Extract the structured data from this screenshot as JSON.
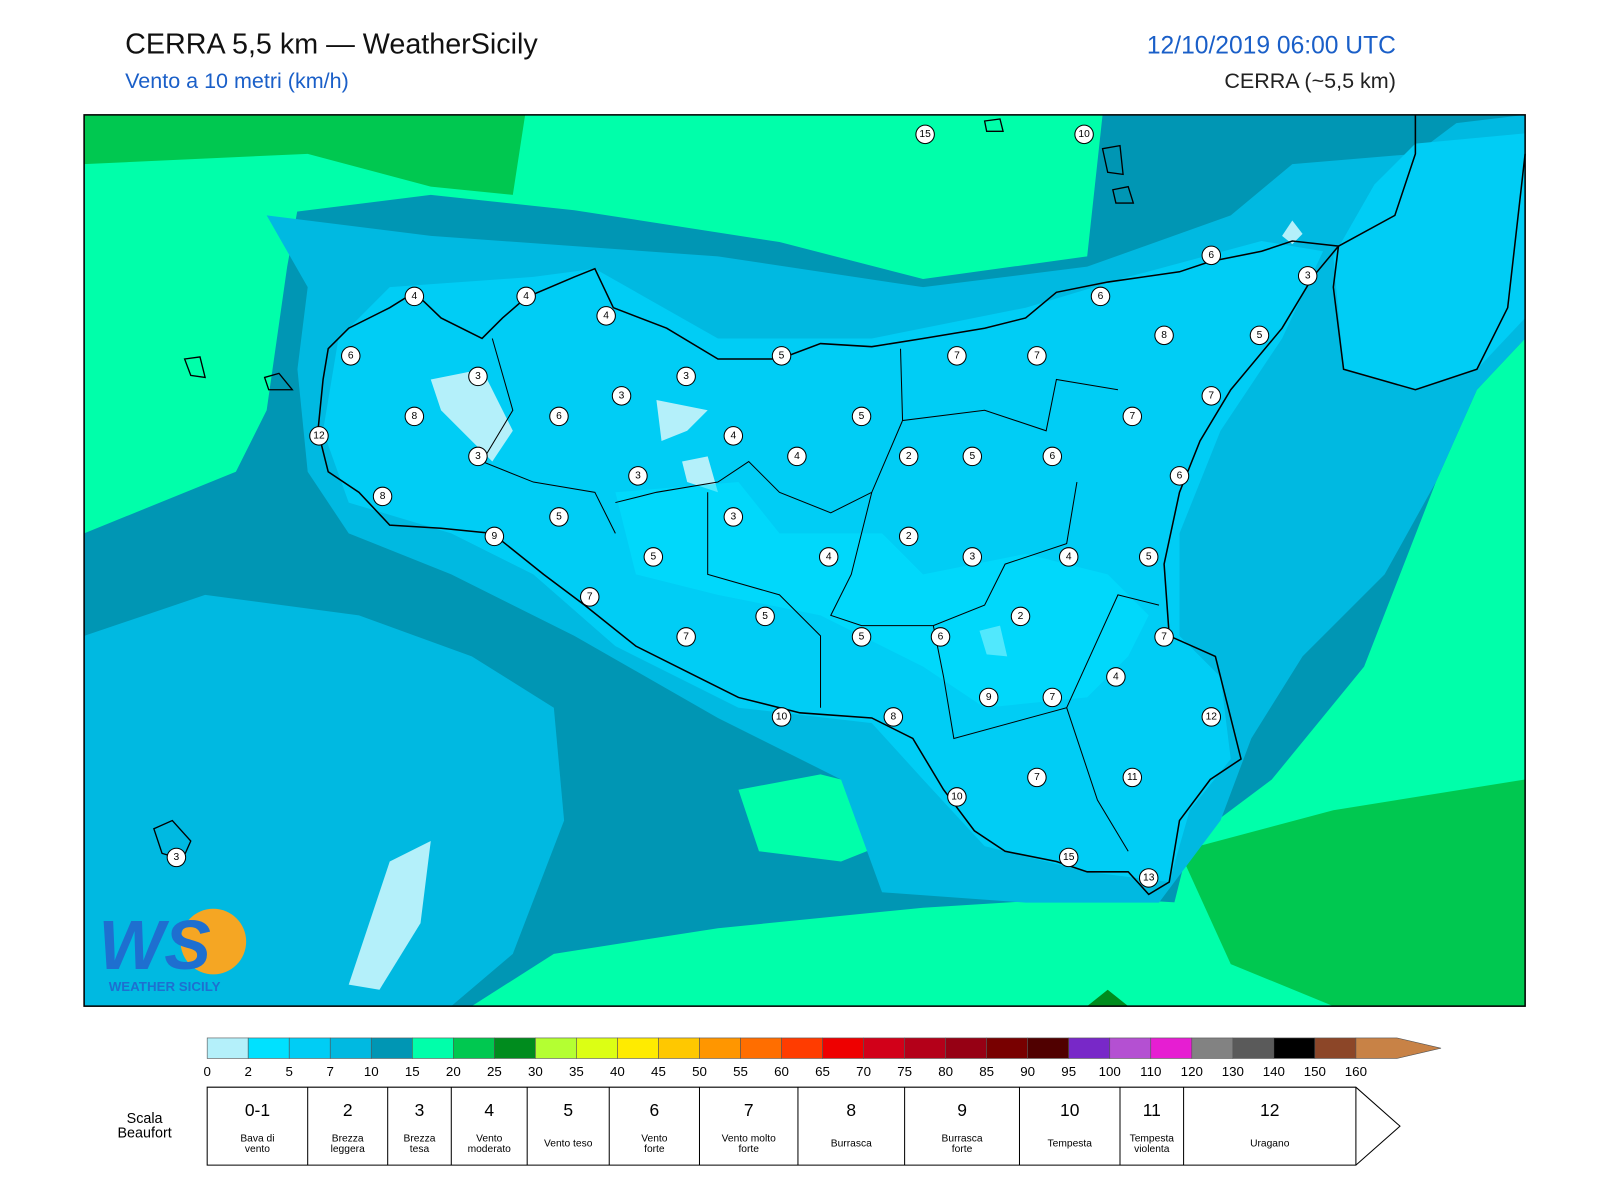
{
  "header": {
    "title": "CERRA 5,5 km — WeatherSicily",
    "subtitle": "Vento a 10 metri (km/h)",
    "datetime": "12/10/2019 06:00 UTC",
    "model": "CERRA (~5,5 km)"
  },
  "logo": {
    "mark": "WS",
    "text": "WEATHER SICILY"
  },
  "stations": [
    15,
    10,
    6,
    3,
    4,
    4,
    4,
    6,
    6,
    5,
    7,
    7,
    8,
    5,
    3,
    3,
    3,
    7,
    8,
    6,
    5,
    7,
    12,
    4,
    3,
    4,
    2,
    5,
    6,
    3,
    6,
    8,
    3,
    5,
    9,
    2,
    5,
    4,
    3,
    4,
    5,
    7,
    2,
    5,
    7,
    5,
    6,
    7,
    4,
    9,
    7,
    10,
    8,
    12,
    7,
    11,
    10,
    3,
    15,
    13
  ],
  "colorbar": {
    "ticks": [
      0,
      2,
      5,
      7,
      10,
      15,
      20,
      25,
      30,
      35,
      40,
      45,
      50,
      55,
      60,
      65,
      70,
      75,
      80,
      85,
      90,
      95,
      100,
      110,
      120,
      130,
      140,
      150,
      160
    ],
    "colors": [
      "#b4f0fa",
      "#00e1ff",
      "#00cdf5",
      "#00b9e1",
      "#0096b4",
      "#00ffaa",
      "#00c850",
      "#008c1e",
      "#b4ff32",
      "#dcff14",
      "#ffeb00",
      "#ffc800",
      "#ff9600",
      "#ff6e00",
      "#ff3c00",
      "#ee0000",
      "#d20019",
      "#b40019",
      "#960014",
      "#780000",
      "#500000",
      "#7828c8",
      "#b450d2",
      "#e61ed2",
      "#828282",
      "#5a5a5a",
      "#000000",
      "#8c4628",
      "#c88246"
    ]
  },
  "beaufort": {
    "title": [
      "Scala",
      "Beaufort"
    ],
    "scale": [
      {
        "force": "0-1",
        "description": [
          "Bava di",
          "vento"
        ]
      },
      {
        "force": "2",
        "description": [
          "Brezza",
          "leggera"
        ]
      },
      {
        "force": "3",
        "description": [
          "Brezza",
          "tesa"
        ]
      },
      {
        "force": "4",
        "description": [
          "Vento",
          "moderato"
        ]
      },
      {
        "force": "5",
        "description": [
          "Vento teso"
        ]
      },
      {
        "force": "6",
        "description": [
          "Vento",
          "forte"
        ]
      },
      {
        "force": "7",
        "description": [
          "Vento molto",
          "forte"
        ]
      },
      {
        "force": "8",
        "description": [
          "Burrasca"
        ]
      },
      {
        "force": "9",
        "description": [
          "Burrasca",
          "forte"
        ]
      },
      {
        "force": "10",
        "description": [
          "Tempesta"
        ]
      },
      {
        "force": "11",
        "description": [
          "Tempesta",
          "violenta"
        ]
      },
      {
        "force": "12",
        "description": [
          "Uragano"
        ]
      }
    ]
  }
}
